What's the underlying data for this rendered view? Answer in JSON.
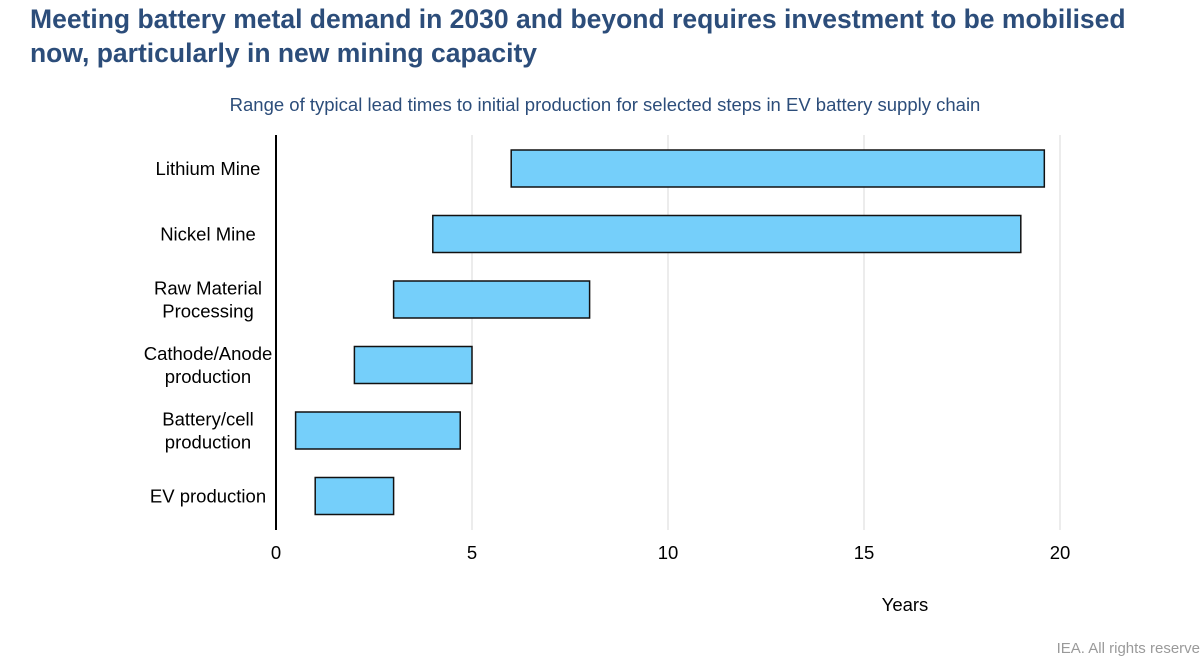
{
  "headline": "Meeting battery metal demand in 2030 and beyond requires investment to be mobilised now, particularly in new mining capacity",
  "footer": "IEA. All rights reserve",
  "chart_data": {
    "type": "bar",
    "orientation": "horizontal",
    "title": "Range of typical lead times to initial production for selected steps in EV battery supply chain",
    "xlabel": "Years",
    "ylabel": "",
    "xlim": [
      0,
      20
    ],
    "xticks": [
      0,
      5,
      10,
      15,
      20
    ],
    "grid": true,
    "legend": "none",
    "bar_color": "#75cffa",
    "bar_edge_color": "#111111",
    "categories": [
      [
        "Lithium Mine"
      ],
      [
        "Nickel Mine"
      ],
      [
        "Raw Material",
        "Processing"
      ],
      [
        "Cathode/Anode",
        "production"
      ],
      [
        "Battery/cell",
        "production"
      ],
      [
        "EV production"
      ]
    ],
    "ranges": [
      [
        6,
        19.6
      ],
      [
        4,
        19
      ],
      [
        3,
        8
      ],
      [
        2,
        5
      ],
      [
        0.5,
        4.7
      ],
      [
        1,
        3
      ]
    ]
  }
}
